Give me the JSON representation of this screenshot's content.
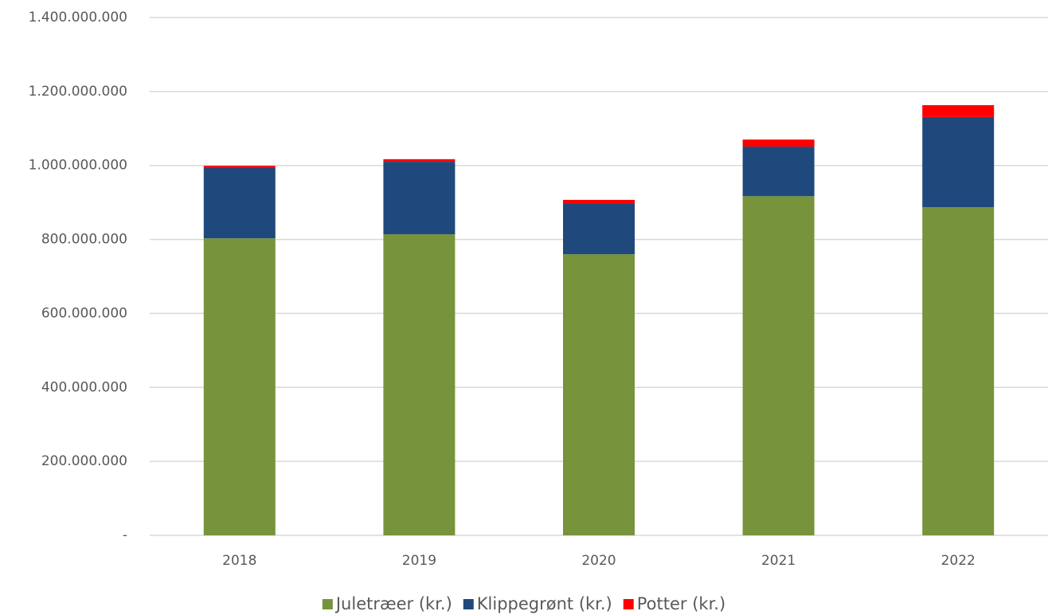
{
  "chart_data": {
    "type": "stacked-bar",
    "categories": [
      "2018",
      "2019",
      "2020",
      "2021",
      "2022"
    ],
    "series": [
      {
        "name": "Juletræer (kr.)",
        "color": "#77933c",
        "values": [
          803000000,
          814000000,
          760000000,
          917000000,
          887000000
        ]
      },
      {
        "name": "Klippegrønt (kr.)",
        "color": "#1f497d",
        "values": [
          190000000,
          196000000,
          138000000,
          134000000,
          244000000
        ]
      },
      {
        "name": "Potter (kr.)",
        "color": "#ff0000",
        "values": [
          6000000,
          7000000,
          9000000,
          19000000,
          32000000
        ]
      }
    ],
    "ylim": [
      0,
      1400000000
    ],
    "yticks": [
      {
        "value": 0,
        "label": "-"
      },
      {
        "value": 200000000,
        "label": "200.000.000"
      },
      {
        "value": 400000000,
        "label": "400.000.000"
      },
      {
        "value": 600000000,
        "label": "600.000.000"
      },
      {
        "value": 800000000,
        "label": "800.000.000"
      },
      {
        "value": 1000000000,
        "label": "1.000.000.000"
      },
      {
        "value": 1200000000,
        "label": "1.200.000.000"
      },
      {
        "value": 1400000000,
        "label": "1.400.000.000"
      }
    ],
    "grid": true,
    "legend": "bottom"
  }
}
